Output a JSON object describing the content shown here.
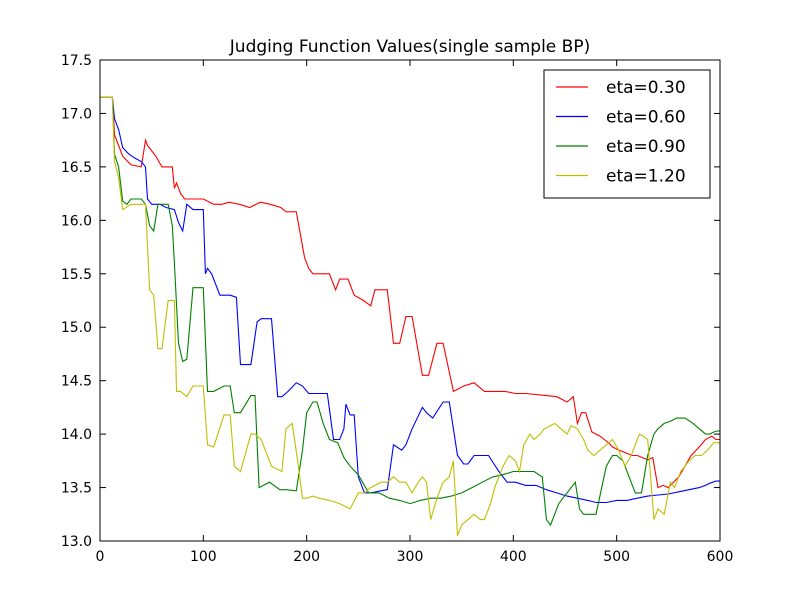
{
  "chart_data": {
    "type": "line",
    "title": "Judging Function Values(single sample BP)",
    "xlabel": "",
    "ylabel": "",
    "xlim": [
      0,
      600
    ],
    "ylim": [
      13.0,
      17.5
    ],
    "xticks": [
      0,
      100,
      200,
      300,
      400,
      500,
      600
    ],
    "xtick_labels": [
      "0",
      "100",
      "200",
      "300",
      "400",
      "500",
      "600"
    ],
    "yticks": [
      13.0,
      13.5,
      14.0,
      14.5,
      15.0,
      15.5,
      16.0,
      16.5,
      17.0,
      17.5
    ],
    "ytick_labels": [
      "13.0",
      "13.5",
      "14.0",
      "14.5",
      "15.0",
      "15.5",
      "16.0",
      "16.5",
      "17.0",
      "17.5"
    ],
    "grid": false,
    "legend_position": "top-right",
    "series": [
      {
        "name": "eta=0.30",
        "color": "#ff0000",
        "x": [
          0,
          12,
          14,
          18,
          22,
          30,
          40,
          44,
          46,
          50,
          54,
          60,
          70,
          72,
          74,
          78,
          82,
          90,
          100,
          110,
          118,
          125,
          135,
          145,
          155,
          165,
          175,
          180,
          190,
          198,
          202,
          206,
          212,
          222,
          228,
          232,
          240,
          246,
          255,
          262,
          266,
          272,
          278,
          284,
          290,
          296,
          302,
          312,
          318,
          326,
          332,
          342,
          352,
          362,
          372,
          382,
          392,
          402,
          412,
          422,
          432,
          442,
          452,
          458,
          462,
          466,
          470,
          474,
          476,
          480,
          484,
          488,
          492,
          496,
          500,
          505,
          510,
          515,
          520,
          525,
          530,
          535,
          540,
          545,
          550,
          555,
          560,
          566,
          572,
          580,
          586,
          592,
          596,
          600
        ],
        "y": [
          17.15,
          17.15,
          16.8,
          16.7,
          16.6,
          16.52,
          16.5,
          16.75,
          16.7,
          16.65,
          16.6,
          16.5,
          16.5,
          16.3,
          16.35,
          16.25,
          16.2,
          16.2,
          16.2,
          16.15,
          16.15,
          16.17,
          16.15,
          16.12,
          16.17,
          16.15,
          16.12,
          16.08,
          16.08,
          15.65,
          15.55,
          15.5,
          15.5,
          15.5,
          15.35,
          15.45,
          15.45,
          15.3,
          15.25,
          15.2,
          15.35,
          15.35,
          15.35,
          14.85,
          14.85,
          15.1,
          15.1,
          14.55,
          14.55,
          14.85,
          14.85,
          14.4,
          14.45,
          14.48,
          14.4,
          14.4,
          14.4,
          14.38,
          14.38,
          14.37,
          14.36,
          14.35,
          14.3,
          14.35,
          14.1,
          14.2,
          14.2,
          14.08,
          14.02,
          14.0,
          13.98,
          13.95,
          13.92,
          13.88,
          13.86,
          13.84,
          13.82,
          13.8,
          13.8,
          13.78,
          13.76,
          13.78,
          13.5,
          13.52,
          13.5,
          13.55,
          13.6,
          13.7,
          13.8,
          13.88,
          13.95,
          13.98,
          13.95,
          13.95
        ]
      },
      {
        "name": "eta=0.60",
        "color": "#0000ff",
        "x": [
          0,
          12,
          14,
          18,
          22,
          28,
          34,
          40,
          44,
          46,
          50,
          54,
          58,
          64,
          72,
          76,
          80,
          84,
          90,
          100,
          102,
          104,
          108,
          116,
          126,
          132,
          136,
          146,
          152,
          156,
          166,
          172,
          176,
          182,
          190,
          196,
          202,
          212,
          220,
          226,
          232,
          236,
          238,
          242,
          246,
          250,
          256,
          262,
          272,
          278,
          284,
          292,
          296,
          302,
          312,
          316,
          322,
          332,
          338,
          346,
          352,
          356,
          362,
          368,
          376,
          386,
          394,
          402,
          412,
          422,
          432,
          442,
          452,
          462,
          472,
          480,
          490,
          500,
          510,
          520,
          530,
          540,
          550,
          560,
          570,
          580,
          586,
          590,
          596,
          600
        ],
        "y": [
          17.15,
          17.15,
          16.95,
          16.85,
          16.68,
          16.62,
          16.58,
          16.55,
          16.5,
          16.2,
          16.15,
          16.15,
          16.15,
          16.12,
          16.1,
          15.98,
          15.9,
          16.15,
          16.1,
          16.1,
          15.5,
          15.55,
          15.5,
          15.3,
          15.3,
          15.28,
          14.65,
          14.65,
          15.05,
          15.08,
          15.08,
          14.35,
          14.35,
          14.4,
          14.48,
          14.45,
          14.38,
          14.38,
          14.38,
          13.95,
          13.95,
          14.05,
          14.28,
          14.18,
          14.18,
          13.6,
          13.45,
          13.45,
          13.47,
          13.48,
          13.9,
          13.85,
          13.9,
          14.05,
          14.25,
          14.2,
          14.15,
          14.3,
          14.3,
          13.8,
          13.72,
          13.72,
          13.8,
          13.8,
          13.8,
          13.65,
          13.55,
          13.55,
          13.52,
          13.52,
          13.48,
          13.45,
          13.42,
          13.4,
          13.38,
          13.36,
          13.36,
          13.38,
          13.38,
          13.4,
          13.42,
          13.43,
          13.44,
          13.46,
          13.48,
          13.5,
          13.52,
          13.54,
          13.56,
          13.56
        ]
      },
      {
        "name": "eta=0.90",
        "color": "#008000",
        "x": [
          0,
          12,
          14,
          18,
          22,
          26,
          30,
          40,
          44,
          48,
          52,
          56,
          66,
          70,
          72,
          76,
          80,
          84,
          90,
          100,
          104,
          110,
          120,
          126,
          130,
          136,
          146,
          150,
          154,
          164,
          174,
          180,
          190,
          196,
          200,
          206,
          210,
          216,
          222,
          230,
          236,
          242,
          250,
          260,
          270,
          280,
          290,
          300,
          310,
          320,
          330,
          340,
          350,
          360,
          370,
          380,
          390,
          400,
          410,
          420,
          428,
          432,
          436,
          440,
          444,
          448,
          452,
          456,
          460,
          464,
          468,
          472,
          480,
          490,
          496,
          500,
          506,
          512,
          518,
          524,
          530,
          536,
          540,
          546,
          552,
          558,
          566,
          574,
          580,
          586,
          590,
          594,
          598,
          600
        ],
        "y": [
          17.15,
          17.15,
          16.62,
          16.5,
          16.18,
          16.15,
          16.2,
          16.2,
          16.15,
          15.95,
          15.9,
          16.15,
          16.15,
          15.95,
          15.6,
          14.85,
          14.68,
          14.7,
          15.37,
          15.37,
          14.4,
          14.4,
          14.45,
          14.45,
          14.2,
          14.2,
          14.36,
          14.36,
          13.5,
          13.55,
          13.48,
          13.48,
          13.47,
          13.85,
          14.2,
          14.3,
          14.3,
          14.1,
          13.95,
          13.92,
          13.78,
          13.7,
          13.62,
          13.45,
          13.45,
          13.4,
          13.38,
          13.35,
          13.38,
          13.4,
          13.4,
          13.42,
          13.45,
          13.5,
          13.55,
          13.6,
          13.62,
          13.65,
          13.65,
          13.65,
          13.6,
          13.2,
          13.15,
          13.25,
          13.35,
          13.4,
          13.45,
          13.5,
          13.55,
          13.3,
          13.25,
          13.25,
          13.25,
          13.7,
          13.8,
          13.8,
          13.75,
          13.6,
          13.45,
          13.45,
          13.8,
          14.0,
          14.05,
          14.1,
          14.12,
          14.15,
          14.15,
          14.1,
          14.05,
          14.0,
          14.0,
          14.02,
          14.03,
          14.03
        ]
      },
      {
        "name": "eta=1.20",
        "color": "#bfbf00",
        "x": [
          0,
          12,
          14,
          18,
          22,
          30,
          40,
          44,
          48,
          52,
          56,
          60,
          66,
          72,
          74,
          78,
          84,
          90,
          100,
          104,
          110,
          120,
          126,
          130,
          136,
          146,
          150,
          156,
          166,
          176,
          180,
          186,
          192,
          196,
          200,
          206,
          212,
          222,
          232,
          242,
          250,
          256,
          262,
          272,
          278,
          284,
          290,
          296,
          302,
          308,
          312,
          316,
          320,
          326,
          332,
          338,
          342,
          346,
          350,
          356,
          362,
          368,
          372,
          378,
          382,
          386,
          390,
          396,
          402,
          406,
          410,
          416,
          420,
          426,
          430,
          436,
          440,
          446,
          452,
          456,
          462,
          468,
          472,
          478,
          484,
          490,
          496,
          502,
          508,
          514,
          518,
          522,
          526,
          530,
          536,
          540,
          546,
          552,
          556,
          562,
          566,
          570,
          576,
          582,
          588,
          594,
          600
        ],
        "y": [
          17.15,
          17.15,
          16.55,
          16.4,
          16.1,
          16.15,
          16.15,
          16.15,
          15.35,
          15.3,
          14.8,
          14.8,
          15.25,
          15.25,
          14.4,
          14.4,
          14.35,
          14.45,
          14.45,
          13.9,
          13.88,
          14.18,
          14.18,
          13.7,
          13.65,
          14.0,
          14.0,
          13.95,
          13.7,
          13.65,
          14.05,
          14.1,
          13.7,
          13.4,
          13.4,
          13.42,
          13.4,
          13.38,
          13.35,
          13.3,
          13.45,
          13.45,
          13.5,
          13.55,
          13.55,
          13.6,
          13.55,
          13.55,
          13.45,
          13.55,
          13.6,
          13.55,
          13.2,
          13.4,
          13.55,
          13.6,
          13.75,
          13.05,
          13.15,
          13.2,
          13.25,
          13.2,
          13.2,
          13.35,
          13.5,
          13.6,
          13.7,
          13.8,
          13.75,
          13.65,
          13.9,
          14.0,
          13.95,
          14.0,
          14.05,
          14.08,
          14.1,
          14.05,
          14.0,
          14.08,
          14.05,
          13.95,
          13.85,
          13.8,
          13.85,
          13.9,
          13.95,
          13.85,
          13.7,
          13.8,
          13.9,
          14.0,
          13.98,
          13.95,
          13.2,
          13.3,
          13.25,
          13.55,
          13.5,
          13.65,
          13.7,
          13.75,
          13.8,
          13.8,
          13.85,
          13.92,
          13.92
        ]
      }
    ]
  }
}
